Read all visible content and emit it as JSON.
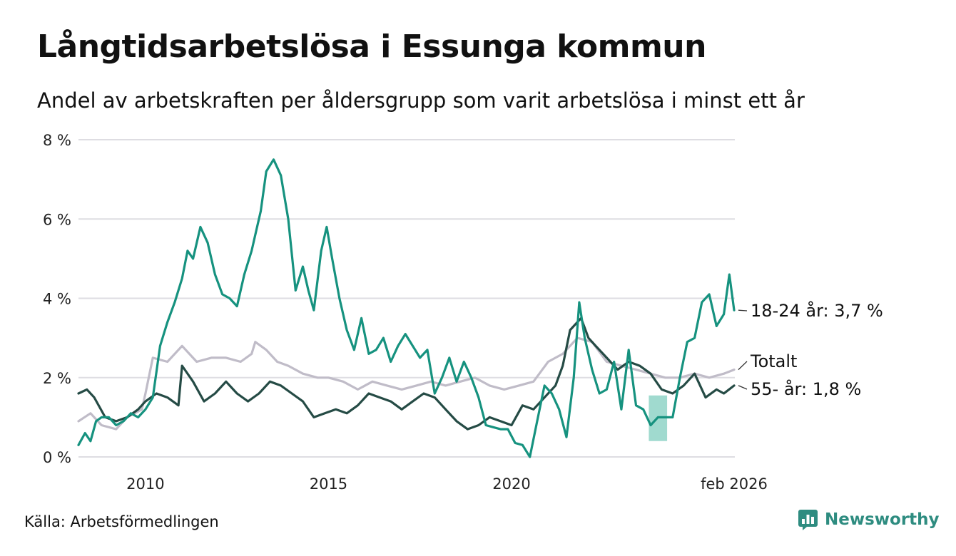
{
  "title": "Långtidsarbetslösa i Essunga kommun",
  "subtitle": "Andel av arbetskraften per åldersgrupp som varit arbetslösa i minst ett år",
  "source": "Källa: Arbetsförmedlingen",
  "brand": "Newsworthy",
  "colors": {
    "youth": "#16927f",
    "total": "#c0bcc8",
    "senior": "#254b45",
    "band": "#8fd3c7",
    "grid": "#dedde2"
  },
  "chart_data": {
    "type": "line",
    "title": "Långtidsarbetslösa i Essunga kommun",
    "xlabel": "",
    "ylabel": "",
    "xlim": [
      2008.17,
      2026.1
    ],
    "ylim": [
      0,
      8
    ],
    "y_ticks": [
      0,
      2,
      4,
      6,
      8
    ],
    "y_tick_labels": [
      "0 %",
      "2 %",
      "4 %",
      "6 %",
      "8 %"
    ],
    "x_ticks": [
      2010,
      2015,
      2020,
      2026.08
    ],
    "x_tick_labels": [
      "2010",
      "2015",
      "2020",
      "feb 2026"
    ],
    "series": [
      {
        "name": "Totalt",
        "label": "Totalt",
        "color": "#c0bcc8",
        "x": [
          2008.17,
          2008.5,
          2008.8,
          2009.2,
          2009.5,
          2009.9,
          2010.0,
          2010.2,
          2010.6,
          2011.0,
          2011.4,
          2011.8,
          2012.2,
          2012.6,
          2012.9,
          2013.0,
          2013.3,
          2013.6,
          2013.9,
          2014.3,
          2014.7,
          2015.0,
          2015.4,
          2015.8,
          2016.2,
          2016.6,
          2017.0,
          2017.4,
          2017.8,
          2018.2,
          2018.6,
          2019.0,
          2019.4,
          2019.8,
          2020.2,
          2020.6,
          2021.0,
          2021.4,
          2021.8,
          2022.2,
          2022.6,
          2023.0,
          2023.4,
          2023.8,
          2024.2,
          2024.6,
          2025.0,
          2025.4,
          2025.8,
          2026.08
        ],
        "y": [
          0.9,
          1.1,
          0.8,
          0.7,
          1.0,
          1.2,
          1.6,
          2.5,
          2.4,
          2.8,
          2.4,
          2.5,
          2.5,
          2.4,
          2.6,
          2.9,
          2.7,
          2.4,
          2.3,
          2.1,
          2.0,
          2.0,
          1.9,
          1.7,
          1.9,
          1.8,
          1.7,
          1.8,
          1.9,
          1.8,
          1.9,
          2.0,
          1.8,
          1.7,
          1.8,
          1.9,
          2.4,
          2.6,
          3.0,
          2.9,
          2.4,
          2.3,
          2.2,
          2.1,
          2.0,
          2.0,
          2.1,
          2.0,
          2.1,
          2.2
        ]
      },
      {
        "name": "55- år",
        "label": "55- år: 1,8 %",
        "color": "#254b45",
        "x": [
          2008.17,
          2008.4,
          2008.6,
          2008.9,
          2009.2,
          2009.5,
          2009.8,
          2010.0,
          2010.3,
          2010.6,
          2010.9,
          2011.0,
          2011.3,
          2011.6,
          2011.9,
          2012.2,
          2012.5,
          2012.8,
          2013.1,
          2013.4,
          2013.7,
          2014.0,
          2014.3,
          2014.6,
          2014.9,
          2015.2,
          2015.5,
          2015.8,
          2016.1,
          2016.4,
          2016.7,
          2017.0,
          2017.3,
          2017.6,
          2017.9,
          2018.2,
          2018.5,
          2018.8,
          2019.1,
          2019.4,
          2019.7,
          2020.0,
          2020.3,
          2020.6,
          2020.9,
          2021.2,
          2021.4,
          2021.6,
          2021.9,
          2022.1,
          2022.3,
          2022.6,
          2022.9,
          2023.2,
          2023.5,
          2023.8,
          2024.1,
          2024.4,
          2024.7,
          2025.0,
          2025.3,
          2025.6,
          2025.8,
          2026.08
        ],
        "y": [
          1.6,
          1.7,
          1.5,
          1.0,
          0.9,
          1.0,
          1.2,
          1.4,
          1.6,
          1.5,
          1.3,
          2.3,
          1.9,
          1.4,
          1.6,
          1.9,
          1.6,
          1.4,
          1.6,
          1.9,
          1.8,
          1.6,
          1.4,
          1.0,
          1.1,
          1.2,
          1.1,
          1.3,
          1.6,
          1.5,
          1.4,
          1.2,
          1.4,
          1.6,
          1.5,
          1.2,
          0.9,
          0.7,
          0.8,
          1.0,
          0.9,
          0.8,
          1.3,
          1.2,
          1.5,
          1.8,
          2.3,
          3.2,
          3.5,
          3.0,
          2.8,
          2.5,
          2.2,
          2.4,
          2.3,
          2.1,
          1.7,
          1.6,
          1.8,
          2.1,
          1.5,
          1.7,
          1.6,
          1.8
        ]
      },
      {
        "name": "18-24 år",
        "label": "18-24 år: 3,7 %",
        "color": "#16927f",
        "x": [
          2008.17,
          2008.35,
          2008.5,
          2008.65,
          2008.8,
          2009.0,
          2009.2,
          2009.4,
          2009.6,
          2009.8,
          2010.0,
          2010.2,
          2010.4,
          2010.6,
          2010.8,
          2011.0,
          2011.15,
          2011.3,
          2011.5,
          2011.7,
          2011.9,
          2012.1,
          2012.3,
          2012.5,
          2012.7,
          2012.9,
          2013.0,
          2013.15,
          2013.3,
          2013.5,
          2013.7,
          2013.9,
          2014.1,
          2014.3,
          2014.45,
          2014.6,
          2014.8,
          2014.95,
          2015.1,
          2015.3,
          2015.5,
          2015.7,
          2015.9,
          2016.1,
          2016.3,
          2016.5,
          2016.7,
          2016.9,
          2017.1,
          2017.3,
          2017.5,
          2017.7,
          2017.9,
          2018.1,
          2018.3,
          2018.5,
          2018.7,
          2018.9,
          2019.1,
          2019.3,
          2019.5,
          2019.7,
          2019.9,
          2020.1,
          2020.3,
          2020.5,
          2020.7,
          2020.9,
          2021.1,
          2021.3,
          2021.5,
          2021.7,
          2021.85,
          2022.0,
          2022.2,
          2022.4,
          2022.6,
          2022.8,
          2023.0,
          2023.2,
          2023.4,
          2023.6,
          2023.8,
          2024.0,
          2024.2,
          2024.4,
          2024.6,
          2024.8,
          2025.0,
          2025.2,
          2025.4,
          2025.6,
          2025.8,
          2025.95,
          2026.08
        ],
        "y": [
          0.3,
          0.6,
          0.4,
          0.9,
          1.0,
          1.0,
          0.8,
          0.9,
          1.1,
          1.0,
          1.2,
          1.5,
          2.8,
          3.4,
          3.9,
          4.5,
          5.2,
          5.0,
          5.8,
          5.4,
          4.6,
          4.1,
          4.0,
          3.8,
          4.6,
          5.2,
          5.6,
          6.2,
          7.2,
          7.5,
          7.1,
          6.0,
          4.2,
          4.8,
          4.2,
          3.7,
          5.2,
          5.8,
          5.0,
          4.0,
          3.2,
          2.7,
          3.5,
          2.6,
          2.7,
          3.0,
          2.4,
          2.8,
          3.1,
          2.8,
          2.5,
          2.7,
          1.6,
          2.0,
          2.5,
          1.9,
          2.4,
          2.0,
          1.5,
          0.8,
          0.75,
          0.7,
          0.7,
          0.35,
          0.3,
          0.0,
          0.9,
          1.8,
          1.6,
          1.2,
          0.5,
          2.0,
          3.9,
          3.0,
          2.2,
          1.6,
          1.7,
          2.4,
          1.2,
          2.7,
          1.3,
          1.2,
          0.8,
          1.0,
          1.0,
          1.0,
          2.0,
          2.9,
          3.0,
          3.9,
          4.1,
          3.3,
          3.6,
          4.6,
          3.7
        ]
      }
    ],
    "band": {
      "name": "osäkert intervall",
      "x": [
        2023.75,
        2024.25
      ],
      "lower": [
        0.4,
        0.4
      ],
      "upper": [
        1.55,
        1.55
      ]
    }
  }
}
